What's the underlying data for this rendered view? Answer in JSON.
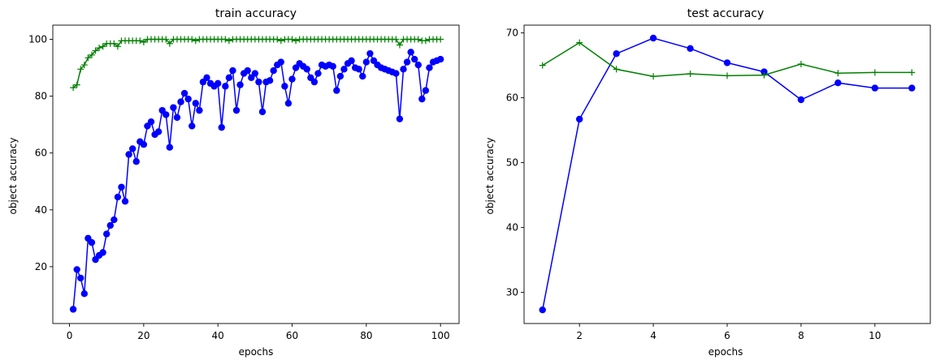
{
  "chart_data": [
    {
      "type": "line",
      "title": "train accuracy",
      "xlabel": "epochs",
      "ylabel": "object accuracy",
      "xlim": [
        -4.5,
        105
      ],
      "ylim": [
        0,
        105
      ],
      "xticks": [
        0,
        20,
        40,
        60,
        80,
        100
      ],
      "yticks": [
        20,
        40,
        60,
        80,
        100
      ],
      "grid": false,
      "series": [
        {
          "color": "#0000ff",
          "marker": "circle",
          "x": [
            1,
            2,
            3,
            4,
            5,
            6,
            7,
            8,
            9,
            10,
            11,
            12,
            13,
            14,
            15,
            16,
            17,
            18,
            19,
            20,
            21,
            22,
            23,
            24,
            25,
            26,
            27,
            28,
            29,
            30,
            31,
            32,
            33,
            34,
            35,
            36,
            37,
            38,
            39,
            40,
            41,
            42,
            43,
            44,
            45,
            46,
            47,
            48,
            49,
            50,
            51,
            52,
            53,
            54,
            55,
            56,
            57,
            58,
            59,
            60,
            61,
            62,
            63,
            64,
            65,
            66,
            67,
            68,
            69,
            70,
            71,
            72,
            73,
            74,
            75,
            76,
            77,
            78,
            79,
            80,
            81,
            82,
            83,
            84,
            85,
            86,
            87,
            88,
            89,
            90,
            91,
            92,
            93,
            94,
            95,
            96,
            97,
            98,
            99,
            100
          ],
          "y": [
            5,
            19,
            16,
            10.5,
            30,
            28.5,
            22.5,
            24,
            25,
            31.5,
            34.5,
            36.5,
            44.5,
            48,
            43,
            59.5,
            61.5,
            57,
            64,
            63,
            69.5,
            71,
            66.5,
            67.5,
            75,
            73.5,
            62,
            76,
            72.5,
            78,
            81,
            79,
            69.5,
            77.5,
            75,
            85,
            86.5,
            84.5,
            83.5,
            84.5,
            69,
            83.5,
            86.5,
            89,
            75,
            84,
            88,
            89,
            86.5,
            88,
            85,
            74.5,
            85,
            85.5,
            89,
            91,
            92,
            83.5,
            77.5,
            86,
            90,
            91.5,
            90.5,
            89.5,
            86.5,
            85,
            88,
            91,
            90.5,
            91,
            90.5,
            82,
            87,
            89.5,
            91.5,
            92.5,
            90,
            89.5,
            87,
            92,
            95,
            92.5,
            91,
            90,
            89.5,
            89,
            88.5,
            88,
            72,
            89.5,
            92,
            95.5,
            93,
            91,
            79,
            82,
            90,
            92,
            92.5,
            93
          ]
        },
        {
          "color": "#008000",
          "marker": "plus",
          "x": [
            1,
            2,
            3,
            4,
            5,
            6,
            7,
            8,
            9,
            10,
            11,
            12,
            13,
            14,
            15,
            16,
            17,
            18,
            19,
            20,
            21,
            22,
            23,
            24,
            25,
            26,
            27,
            28,
            29,
            30,
            31,
            32,
            33,
            34,
            35,
            36,
            37,
            38,
            39,
            40,
            41,
            42,
            43,
            44,
            45,
            46,
            47,
            48,
            49,
            50,
            51,
            52,
            53,
            54,
            55,
            56,
            57,
            58,
            59,
            60,
            61,
            62,
            63,
            64,
            65,
            66,
            67,
            68,
            69,
            70,
            71,
            72,
            73,
            74,
            75,
            76,
            77,
            78,
            79,
            80,
            81,
            82,
            83,
            84,
            85,
            86,
            87,
            88,
            89,
            90,
            91,
            92,
            93,
            94,
            95,
            96,
            97,
            98,
            99,
            100
          ],
          "y": [
            83,
            84,
            89.5,
            91,
            93.5,
            94.5,
            96,
            97,
            97.5,
            98.5,
            98.5,
            98.5,
            97.5,
            99.5,
            99.5,
            99.5,
            99.5,
            99.5,
            99.5,
            99,
            100,
            100,
            100,
            100,
            100,
            100,
            98.5,
            100,
            100,
            100,
            100,
            100,
            100,
            99.5,
            100,
            100,
            100,
            100,
            100,
            100,
            100,
            100,
            99.5,
            100,
            100,
            100,
            100,
            100,
            100,
            100,
            100,
            100,
            100,
            100,
            100,
            100,
            99.5,
            100,
            100,
            100,
            99.5,
            100,
            100,
            100,
            100,
            100,
            100,
            100,
            100,
            100,
            100,
            100,
            100,
            100,
            100,
            100,
            100,
            100,
            100,
            100,
            100,
            100,
            100,
            100,
            100,
            100,
            100,
            100,
            98,
            100,
            100,
            100,
            100,
            100,
            99.5,
            99.5,
            100,
            100,
            100,
            100
          ]
        }
      ]
    },
    {
      "type": "line",
      "title": "test accuracy",
      "xlabel": "epochs",
      "ylabel": "object accuracy",
      "xlim": [
        0.5,
        11.5
      ],
      "ylim": [
        25.2,
        71.2
      ],
      "xticks": [
        2,
        4,
        6,
        8,
        10
      ],
      "yticks": [
        30,
        40,
        50,
        60,
        70
      ],
      "grid": false,
      "series": [
        {
          "color": "#0000ff",
          "marker": "circle",
          "x": [
            1,
            2,
            3,
            4,
            5,
            6,
            7,
            8,
            9,
            10,
            11
          ],
          "y": [
            27.3,
            56.7,
            66.8,
            69.2,
            67.6,
            65.4,
            64.0,
            59.7,
            62.3,
            61.5,
            61.5
          ]
        },
        {
          "color": "#008000",
          "marker": "plus",
          "x": [
            1,
            2,
            3,
            4,
            5,
            6,
            7,
            8,
            9,
            10,
            11
          ],
          "y": [
            65.0,
            68.5,
            64.4,
            63.3,
            63.7,
            63.4,
            63.5,
            65.2,
            63.8,
            63.9,
            63.9
          ]
        }
      ]
    }
  ]
}
